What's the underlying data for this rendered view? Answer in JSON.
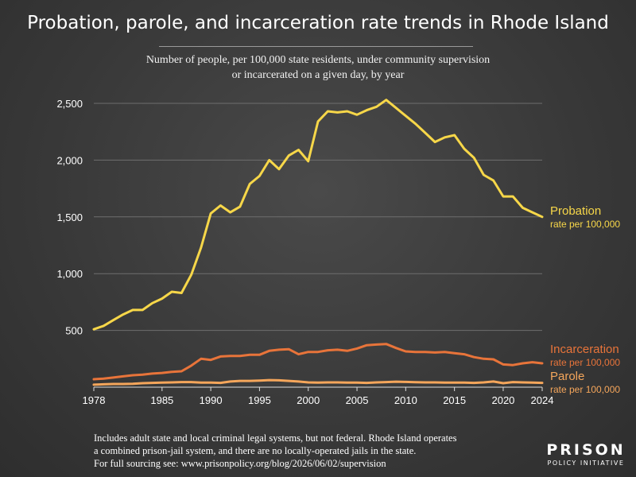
{
  "title": "Probation, parole, and incarceration rate trends in Rhode Island",
  "subtitle": "Number of people, per 100,000 state residents, under community supervision or incarcerated on a given day, by year",
  "footnote": {
    "line1": "Includes adult state and local criminal legal systems, but not federal. Rhode Island operates",
    "line2": "a combined prison-jail system, and there are no locally-operated jails in the state.",
    "line3": "For full sourcing see: www.prisonpolicy.org/blog/2026/06/02/supervision"
  },
  "logo": {
    "main": "PRISON",
    "sub": "POLICY INITIATIVE"
  },
  "chart_data": {
    "type": "line",
    "xlim": [
      1978,
      2024
    ],
    "ylim": [
      0,
      2500
    ],
    "x_ticks": [
      1978,
      1985,
      1990,
      1995,
      2000,
      2005,
      2010,
      2015,
      2020,
      2024
    ],
    "y_ticks": [
      500,
      1000,
      1500,
      2000,
      2500
    ],
    "y_tick_labels": [
      "500",
      "1,000",
      "1,500",
      "2,000",
      "2,500"
    ],
    "grid": true,
    "x": [
      1978,
      1979,
      1980,
      1981,
      1982,
      1983,
      1984,
      1985,
      1986,
      1987,
      1988,
      1989,
      1990,
      1991,
      1992,
      1993,
      1994,
      1995,
      1996,
      1997,
      1998,
      1999,
      2000,
      2001,
      2002,
      2003,
      2004,
      2005,
      2006,
      2007,
      2008,
      2009,
      2010,
      2011,
      2012,
      2013,
      2014,
      2015,
      2016,
      2017,
      2018,
      2019,
      2020,
      2021,
      2022,
      2023,
      2024
    ],
    "series": [
      {
        "name": "Probation",
        "label_sub": "rate per 100,000",
        "color": "#f7d749",
        "values": [
          510,
          540,
          590,
          640,
          680,
          680,
          740,
          780,
          840,
          830,
          990,
          1230,
          1530,
          1600,
          1540,
          1590,
          1790,
          1860,
          2000,
          1920,
          2040,
          2090,
          1990,
          2340,
          2430,
          2420,
          2430,
          2400,
          2440,
          2470,
          2530,
          2460,
          2390,
          2320,
          2240,
          2160,
          2200,
          2220,
          2100,
          2020,
          1870,
          1820,
          1680,
          1680,
          1580,
          1540,
          1500
        ]
      },
      {
        "name": "Incarceration",
        "label_sub": "rate per 100,000",
        "color": "#e8743a",
        "values": [
          70,
          75,
          85,
          95,
          105,
          110,
          120,
          125,
          135,
          140,
          190,
          250,
          240,
          270,
          275,
          275,
          285,
          285,
          320,
          330,
          335,
          290,
          310,
          310,
          325,
          330,
          320,
          340,
          370,
          375,
          380,
          345,
          315,
          310,
          310,
          305,
          310,
          300,
          290,
          265,
          250,
          245,
          200,
          195,
          210,
          220,
          210
        ]
      },
      {
        "name": "Parole",
        "label_sub": "rate per 100,000",
        "color": "#f5a65b",
        "values": [
          22,
          25,
          28,
          28,
          30,
          35,
          38,
          40,
          42,
          45,
          45,
          40,
          40,
          38,
          50,
          55,
          55,
          58,
          62,
          60,
          55,
          50,
          42,
          40,
          42,
          42,
          40,
          40,
          38,
          42,
          45,
          48,
          46,
          44,
          42,
          42,
          40,
          40,
          40,
          38,
          42,
          50,
          35,
          45,
          42,
          40,
          38
        ]
      }
    ]
  }
}
